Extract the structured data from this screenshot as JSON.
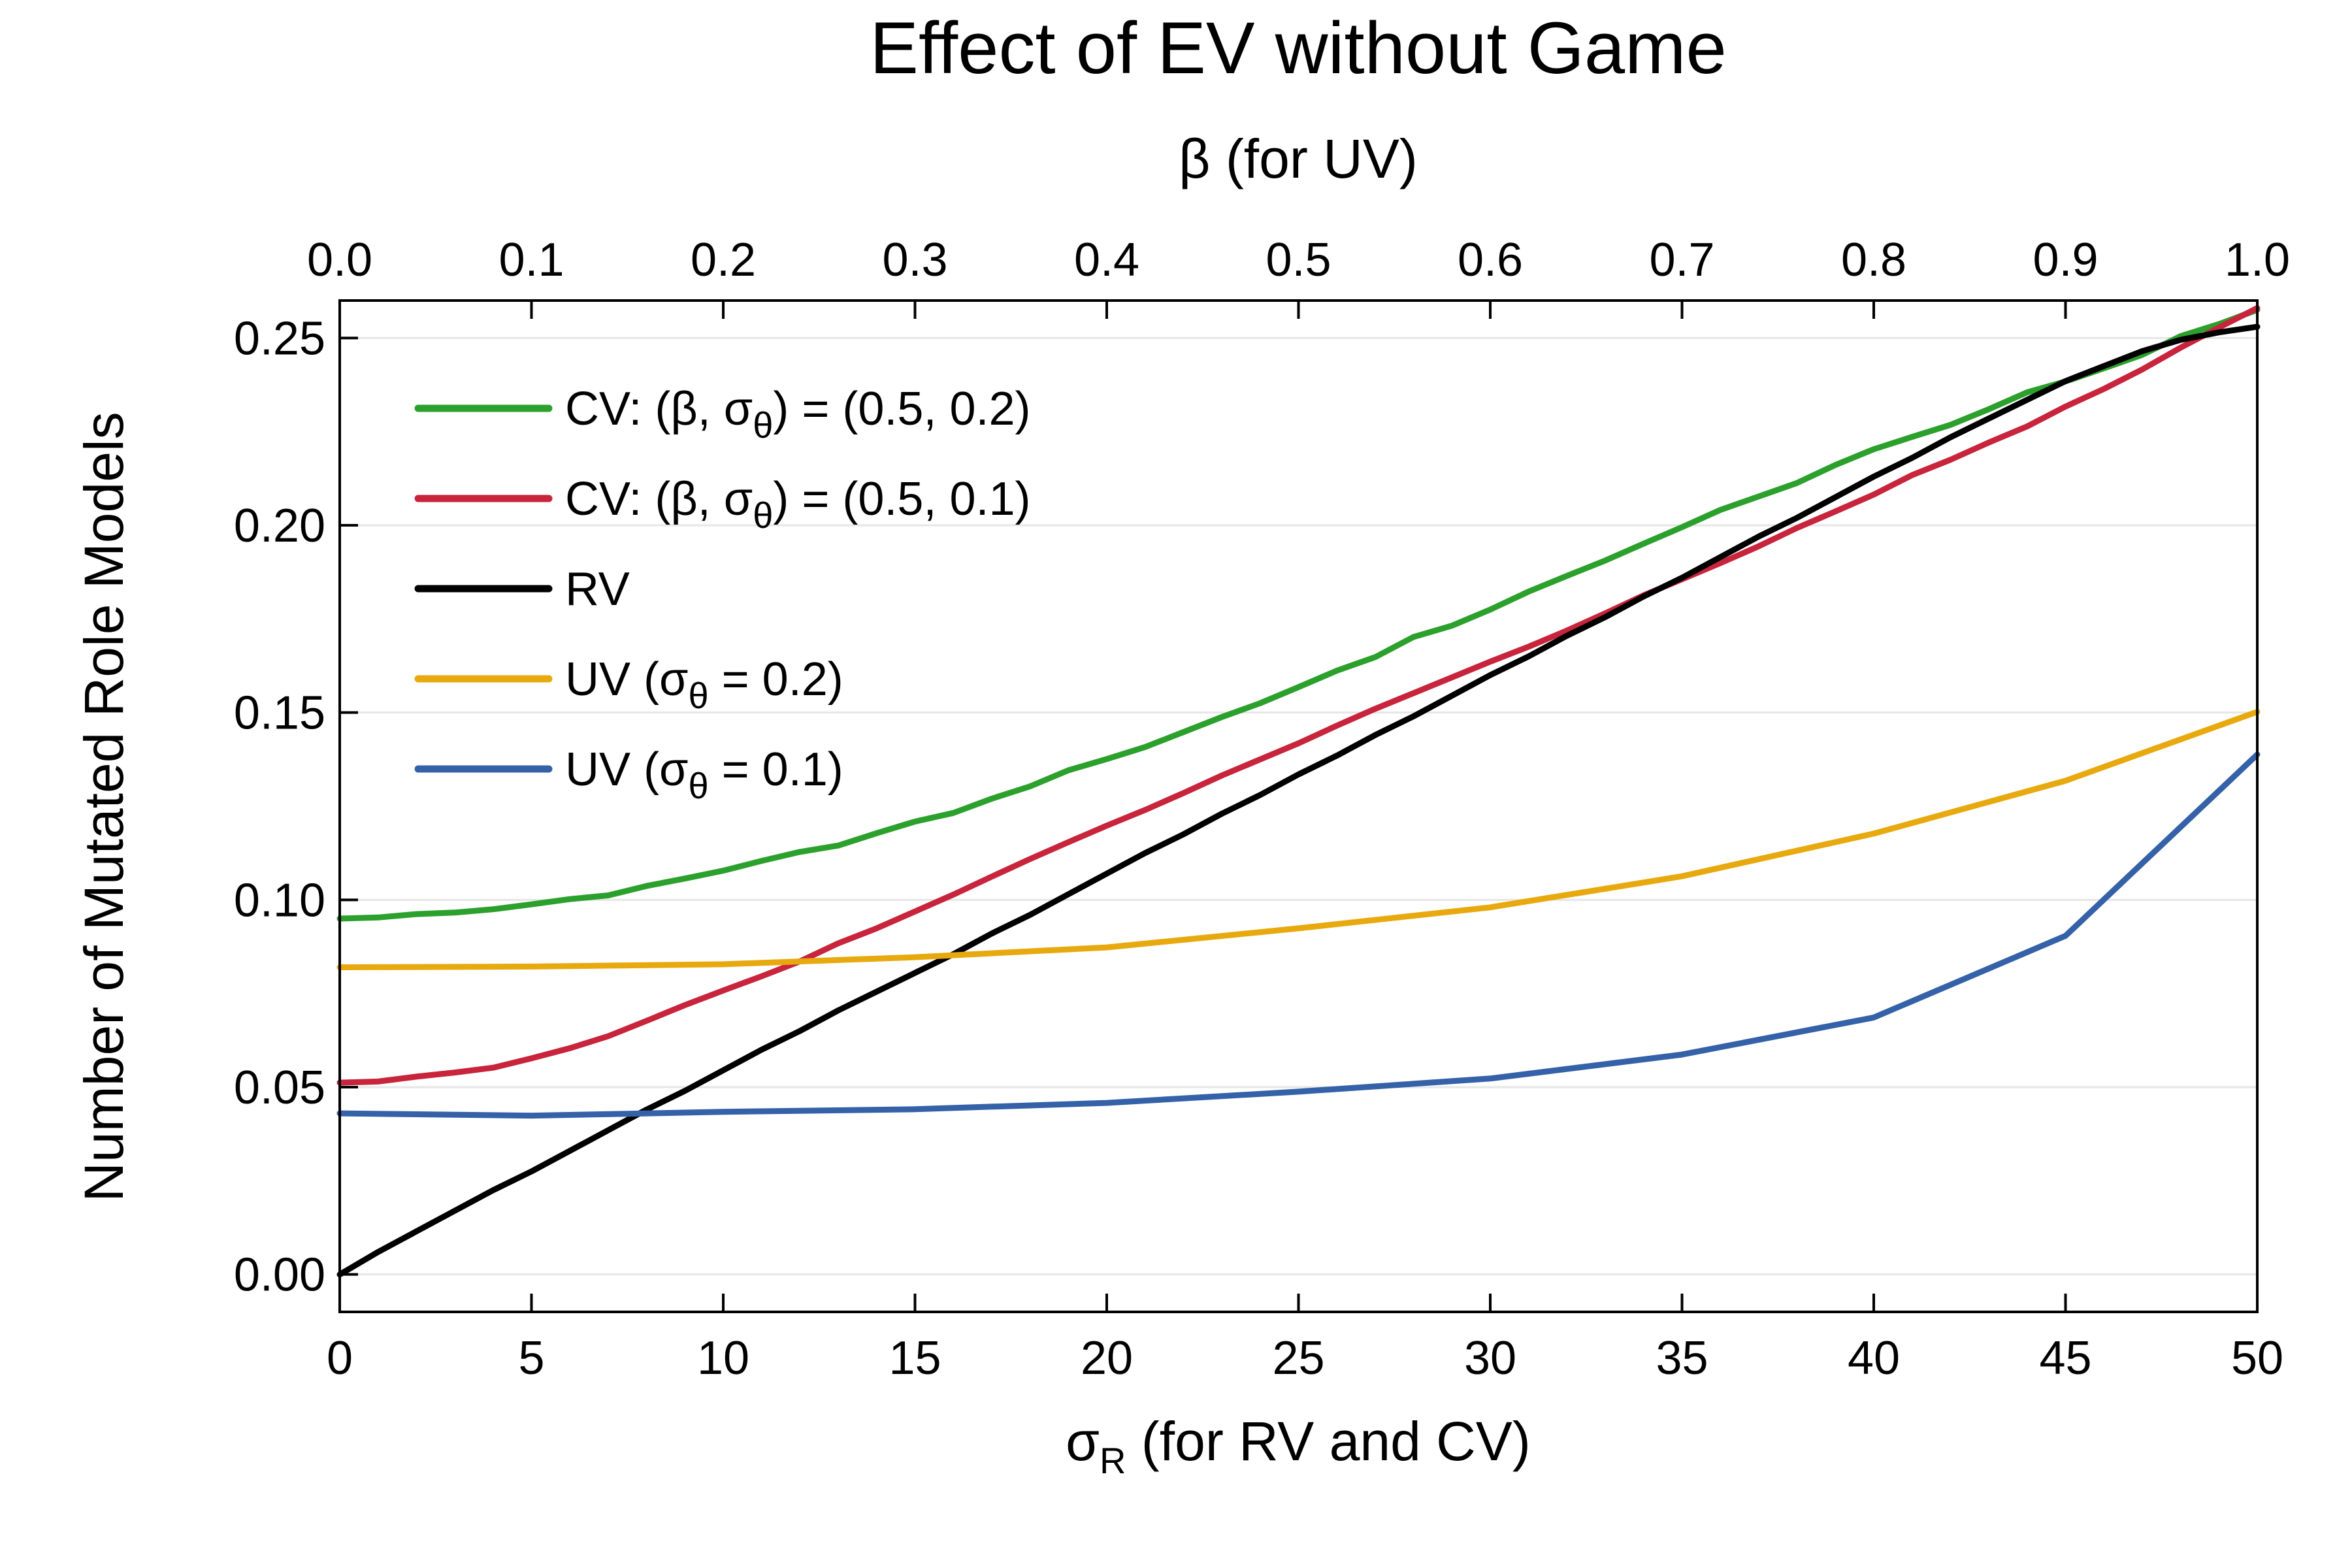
{
  "chart_data": {
    "type": "line",
    "title": "Effect of EV without Game",
    "xlabel": {
      "main": "σ",
      "sub": "R",
      "rest": " (for RV and CV)"
    },
    "x2label": "β (for UV)",
    "ylabel": "Number of Mutated Role Models",
    "xlim": [
      0,
      50
    ],
    "x2lim": [
      0.0,
      1.0
    ],
    "ylim": [
      -0.01,
      0.26
    ],
    "xticks": [
      "0",
      "5",
      "10",
      "15",
      "20",
      "25",
      "30",
      "35",
      "40",
      "45",
      "50"
    ],
    "x2ticks": [
      "0.0",
      "0.1",
      "0.2",
      "0.3",
      "0.4",
      "0.5",
      "0.6",
      "0.7",
      "0.8",
      "0.9",
      "1.0"
    ],
    "yticks": [
      "0.00",
      "0.05",
      "0.10",
      "0.15",
      "0.20",
      "0.25"
    ],
    "grid": "horizontal",
    "legend_position": "top-left",
    "series": [
      {
        "name": "CV: (β, σθ) = (0.5, 0.2)",
        "legend": {
          "before": "CV: (β, σ",
          "sub": "θ",
          "after": ") = (0.5, 0.2)"
        },
        "color": "#2ca02c",
        "axis": "bottom",
        "x": [
          0,
          1,
          2,
          3,
          4,
          5,
          6,
          7,
          8,
          9,
          10,
          11,
          12,
          13,
          14,
          15,
          16,
          17,
          18,
          19,
          20,
          21,
          22,
          23,
          24,
          25,
          26,
          27,
          28,
          29,
          30,
          31,
          32,
          33,
          34,
          35,
          36,
          37,
          38,
          39,
          40,
          41,
          42,
          43,
          44,
          45,
          46,
          47,
          48,
          49,
          50
        ],
        "y": [
          0.095,
          0.0953,
          0.0962,
          0.0966,
          0.0975,
          0.0988,
          0.1002,
          0.1012,
          0.1037,
          0.1057,
          0.1078,
          0.1104,
          0.1128,
          0.1145,
          0.1178,
          0.1209,
          0.1232,
          0.127,
          0.1303,
          0.1346,
          0.1376,
          0.1408,
          0.1448,
          0.1488,
          0.1525,
          0.1568,
          0.1612,
          0.1648,
          0.1702,
          0.1732,
          0.1775,
          0.1823,
          0.1865,
          0.1906,
          0.1951,
          0.1995,
          0.2041,
          0.2077,
          0.2113,
          0.2161,
          0.2203,
          0.2236,
          0.2268,
          0.231,
          0.2355,
          0.2384,
          0.2419,
          0.2455,
          0.2505,
          0.2537,
          0.2575
        ]
      },
      {
        "name": "CV: (β, σθ) = (0.5, 0.1)",
        "legend": {
          "before": "CV: (β, σ",
          "sub": "θ",
          "after": ") = (0.5, 0.1)"
        },
        "color": "#c8243c",
        "axis": "bottom",
        "x": [
          0,
          1,
          2,
          3,
          4,
          5,
          6,
          7,
          8,
          9,
          10,
          11,
          12,
          13,
          14,
          15,
          16,
          17,
          18,
          19,
          20,
          21,
          22,
          23,
          24,
          25,
          26,
          27,
          28,
          29,
          30,
          31,
          32,
          33,
          34,
          35,
          36,
          37,
          38,
          39,
          40,
          41,
          42,
          43,
          44,
          45,
          46,
          47,
          48,
          49,
          50
        ],
        "y": [
          0.0512,
          0.0515,
          0.0528,
          0.0539,
          0.0552,
          0.0577,
          0.0604,
          0.0636,
          0.0677,
          0.0719,
          0.0758,
          0.0796,
          0.0836,
          0.0884,
          0.0924,
          0.0969,
          0.1014,
          0.1062,
          0.1109,
          0.1154,
          0.1198,
          0.124,
          0.1285,
          0.1332,
          0.1375,
          0.1418,
          0.1465,
          0.151,
          0.1552,
          0.1594,
          0.1636,
          0.1676,
          0.1719,
          0.1765,
          0.1813,
          0.1856,
          0.1899,
          0.1944,
          0.1993,
          0.2037,
          0.2082,
          0.2134,
          0.2175,
          0.2221,
          0.2264,
          0.2317,
          0.2364,
          0.2416,
          0.2474,
          0.2528,
          0.258
        ]
      },
      {
        "name": "RV",
        "legend": {
          "before": "RV",
          "sub": "",
          "after": ""
        },
        "color": "#000000",
        "axis": "bottom",
        "x": [
          0,
          1,
          2,
          3,
          4,
          5,
          6,
          7,
          8,
          9,
          10,
          11,
          12,
          13,
          14,
          15,
          16,
          17,
          18,
          19,
          20,
          21,
          22,
          23,
          24,
          25,
          26,
          27,
          28,
          29,
          30,
          31,
          32,
          33,
          34,
          35,
          36,
          37,
          38,
          39,
          40,
          41,
          42,
          43,
          44,
          45,
          46,
          47,
          48,
          49,
          50
        ],
        "y": [
          0.0,
          0.006,
          0.0115,
          0.017,
          0.0225,
          0.0275,
          0.033,
          0.0385,
          0.044,
          0.049,
          0.0545,
          0.06,
          0.065,
          0.0705,
          0.0755,
          0.0805,
          0.0855,
          0.091,
          0.096,
          0.1015,
          0.107,
          0.1125,
          0.1175,
          0.123,
          0.128,
          0.1335,
          0.1385,
          0.144,
          0.149,
          0.1545,
          0.16,
          0.165,
          0.1705,
          0.1755,
          0.181,
          0.186,
          0.1915,
          0.197,
          0.202,
          0.2075,
          0.213,
          0.218,
          0.2235,
          0.2285,
          0.2335,
          0.2385,
          0.2425,
          0.2465,
          0.2495,
          0.2515,
          0.253
        ]
      },
      {
        "name": "UV (σθ = 0.2)",
        "legend": {
          "before": "UV (σ",
          "sub": "θ",
          "after": " = 0.2)"
        },
        "color": "#e8a90e",
        "axis": "top",
        "x": [
          0.0,
          0.1,
          0.2,
          0.3,
          0.4,
          0.5,
          0.6,
          0.7,
          0.8,
          0.9,
          1.0
        ],
        "y": [
          0.082,
          0.0822,
          0.0828,
          0.0847,
          0.0873,
          0.0924,
          0.098,
          0.1063,
          0.1177,
          0.1318,
          0.1502
        ]
      },
      {
        "name": "UV (σθ = 0.1)",
        "legend": {
          "before": "UV (σ",
          "sub": "θ",
          "after": " = 0.1)"
        },
        "color": "#3461a8",
        "axis": "top",
        "x": [
          0.0,
          0.1,
          0.2,
          0.3,
          0.4,
          0.5,
          0.6,
          0.7,
          0.8,
          0.9,
          1.0
        ],
        "y": [
          0.043,
          0.0424,
          0.0434,
          0.0441,
          0.0458,
          0.0488,
          0.0523,
          0.0587,
          0.0686,
          0.0904,
          0.1388
        ]
      }
    ]
  }
}
